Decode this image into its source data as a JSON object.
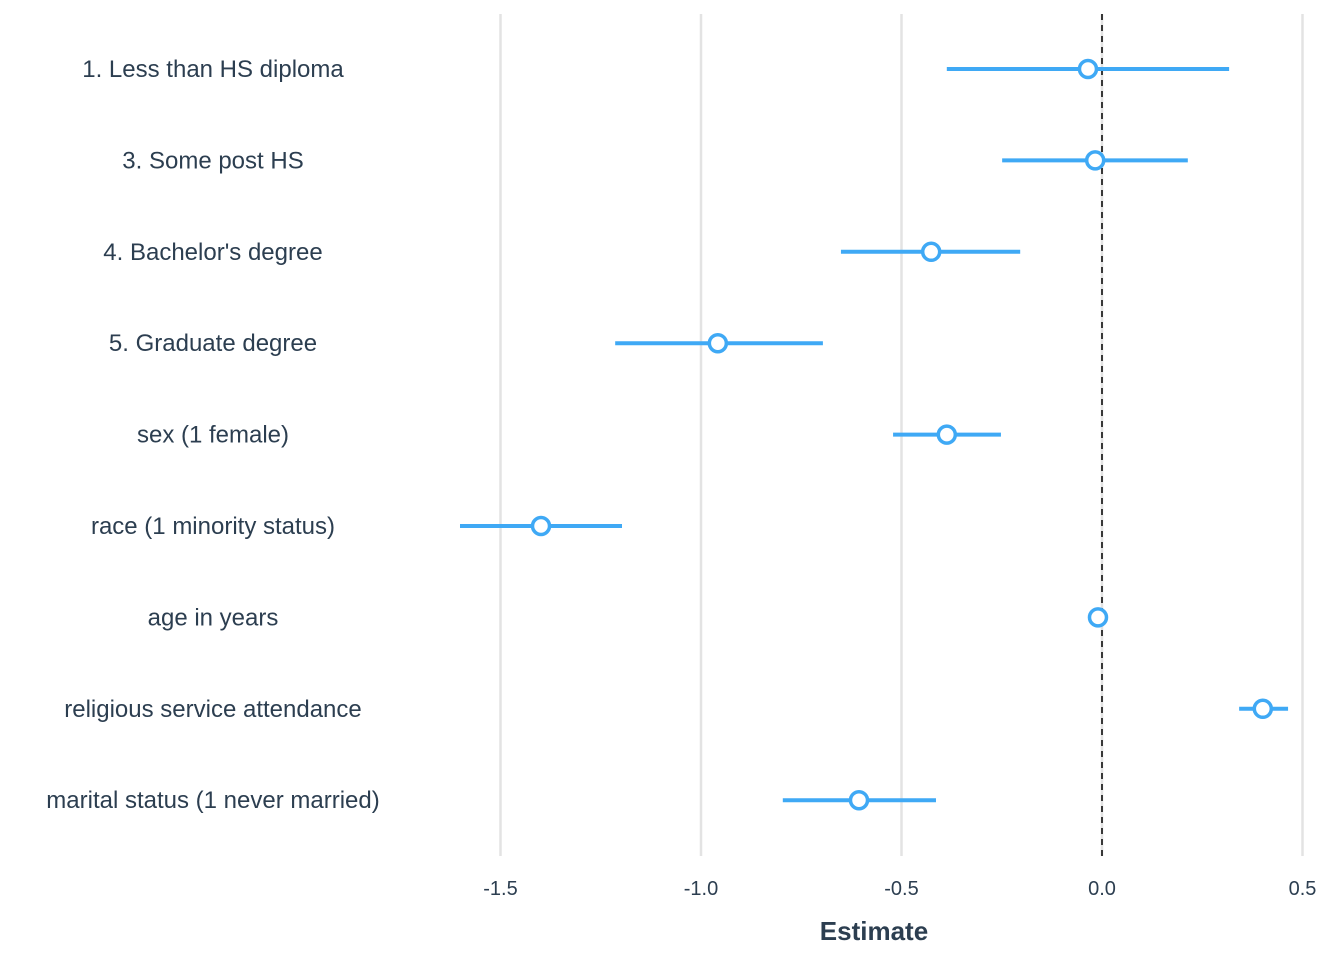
{
  "chart_data": {
    "type": "dot-whisker",
    "xlabel": "Estimate",
    "ylabel": "",
    "xlim": [
      -1.7,
      0.52
    ],
    "x_ticks": [
      -1.5,
      -1.0,
      -0.5,
      0.0,
      0.5
    ],
    "x_tick_labels": [
      "-1.5",
      "-1.0",
      "-0.5",
      "0.0",
      "0.5"
    ],
    "grid": "vertical major",
    "reference_line": 0,
    "color": "#3fa9f5",
    "terms": [
      {
        "label": "1. Less than HS diploma",
        "estimate": -0.035,
        "low": -0.387,
        "high": 0.317
      },
      {
        "label": "3. Some post HS",
        "estimate": -0.017,
        "low": -0.249,
        "high": 0.214
      },
      {
        "label": "4. Bachelor's degree",
        "estimate": -0.426,
        "low": -0.651,
        "high": -0.204
      },
      {
        "label": "5. Graduate degree",
        "estimate": -0.958,
        "low": -1.214,
        "high": -0.696
      },
      {
        "label": "sex (1 female)",
        "estimate": -0.387,
        "low": -0.521,
        "high": -0.252
      },
      {
        "label": "race (1 minority status)",
        "estimate": -1.399,
        "low": -1.601,
        "high": -1.197
      },
      {
        "label": "age in years",
        "estimate": -0.01,
        "low": -0.016,
        "high": -0.004
      },
      {
        "label": "religious service attendance",
        "estimate": 0.401,
        "low": 0.342,
        "high": 0.464
      },
      {
        "label": "marital status (1 never married)",
        "estimate": -0.606,
        "low": -0.796,
        "high": -0.414
      }
    ]
  }
}
